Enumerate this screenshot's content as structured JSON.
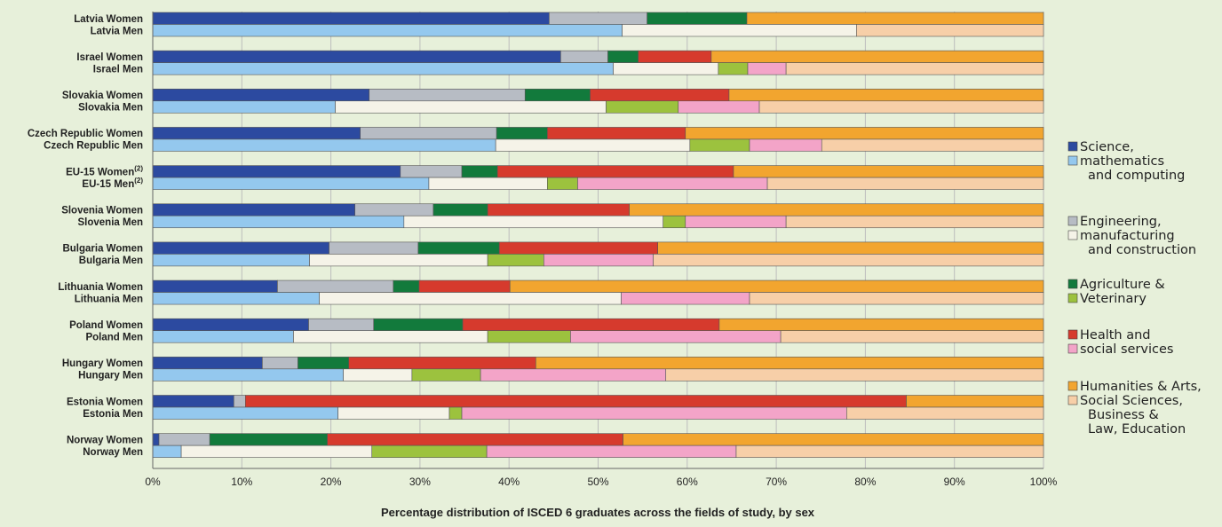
{
  "chart_data": {
    "type": "bar",
    "orientation": "horizontal",
    "stacked": true,
    "percent": true,
    "title": "",
    "caption": "Percentage distribution of ISCED 6 graduates across the fields of study, by sex",
    "xlim": [
      0,
      100
    ],
    "x_ticks": [
      "0%",
      "10%",
      "20%",
      "30%",
      "40%",
      "50%",
      "60%",
      "70%",
      "80%",
      "90%",
      "100%"
    ],
    "grid": true,
    "legend_position": "right",
    "colors": {
      "women": [
        "#2c4aa0",
        "#b7bcc4",
        "#127a3c",
        "#d63a2d",
        "#f2a52f"
      ],
      "men": [
        "#94c8ee",
        "#f5f3e8",
        "#9cc23e",
        "#f3a4c8",
        "#f7cfa8"
      ]
    },
    "legend": [
      {
        "lines": [
          "Science,",
          "mathematics",
          "and computing"
        ]
      },
      {
        "lines": [
          "Engineering,",
          "manufacturing",
          "and construction"
        ]
      },
      {
        "lines": [
          "Agriculture &",
          "Veterinary"
        ]
      },
      {
        "lines": [
          "Health and",
          "social services"
        ]
      },
      {
        "lines": [
          "Humanities & Arts,",
          "Social Sciences,",
          "Business &",
          "Law, Education"
        ]
      }
    ],
    "groups": [
      {
        "women_label": "Latvia Women",
        "men_label": "Latvia Men",
        "women": [
          44.5,
          11,
          11.2,
          0,
          33.3
        ],
        "men": [
          52.7,
          26.3,
          0,
          0,
          21
        ]
      },
      {
        "women_label": "Israel Women",
        "men_label": "Israel Men",
        "women": [
          45.8,
          5.3,
          3.4,
          8.2,
          37.3
        ],
        "men": [
          51.7,
          11.8,
          3.3,
          4.3,
          28.9
        ]
      },
      {
        "women_label": "Slovakia Women",
        "men_label": "Slovakia Men",
        "women": [
          24.3,
          17.5,
          7.3,
          15.6,
          35.3
        ],
        "men": [
          20.5,
          30.4,
          8.1,
          9.1,
          31.9
        ]
      },
      {
        "women_label": "Czech Republic Women",
        "men_label": "Czech Republic Men",
        "women": [
          23.3,
          15.3,
          5.7,
          15.5,
          40.2
        ],
        "men": [
          38.5,
          21.8,
          6.7,
          8.1,
          24.9
        ]
      },
      {
        "women_label": "EU-15 Women",
        "women_sup": "(2)",
        "men_label": "EU-15 Men",
        "men_sup": "(2)",
        "women": [
          27.8,
          6.9,
          4,
          26.5,
          34.8
        ],
        "men": [
          31,
          13.3,
          3.4,
          21.3,
          31
        ]
      },
      {
        "women_label": "Slovenia Women",
        "men_label": "Slovenia Men",
        "women": [
          22.7,
          8.8,
          6.1,
          15.9,
          46.5
        ],
        "men": [
          28.2,
          29.1,
          2.5,
          11.3,
          28.9
        ]
      },
      {
        "women_label": "Bulgaria Women",
        "men_label": "Bulgaria Men",
        "women": [
          19.8,
          10,
          9.1,
          17.8,
          43.3
        ],
        "men": [
          17.6,
          20,
          6.3,
          12.3,
          43.8
        ]
      },
      {
        "women_label": "Lithuania Women",
        "men_label": "Lithuania Men",
        "women": [
          14,
          13,
          2.9,
          10.2,
          59.9
        ],
        "men": [
          18.7,
          33.9,
          0,
          14.4,
          33
        ]
      },
      {
        "women_label": "Poland Women",
        "men_label": "Poland Men",
        "women": [
          17.5,
          7.3,
          10,
          28.8,
          36.4
        ],
        "men": [
          15.8,
          21.8,
          9.3,
          23.6,
          29.5
        ]
      },
      {
        "women_label": "Hungary Women",
        "men_label": "Hungary Men",
        "women": [
          12.3,
          4,
          5.7,
          21,
          57
        ],
        "men": [
          21.4,
          7.7,
          7.7,
          20.8,
          42.4
        ]
      },
      {
        "women_label": "Estonia Women",
        "men_label": "Estonia Men",
        "women": [
          9.1,
          1.3,
          0,
          74.2,
          15.4
        ],
        "men": [
          20.8,
          12.5,
          1.4,
          43.2,
          22.1
        ]
      },
      {
        "women_label": "Norway Women",
        "men_label": "Norway Men",
        "women": [
          0.7,
          5.7,
          13.2,
          33.2,
          47.2
        ],
        "men": [
          3.2,
          21.4,
          12.9,
          28,
          34.5
        ]
      }
    ]
  }
}
